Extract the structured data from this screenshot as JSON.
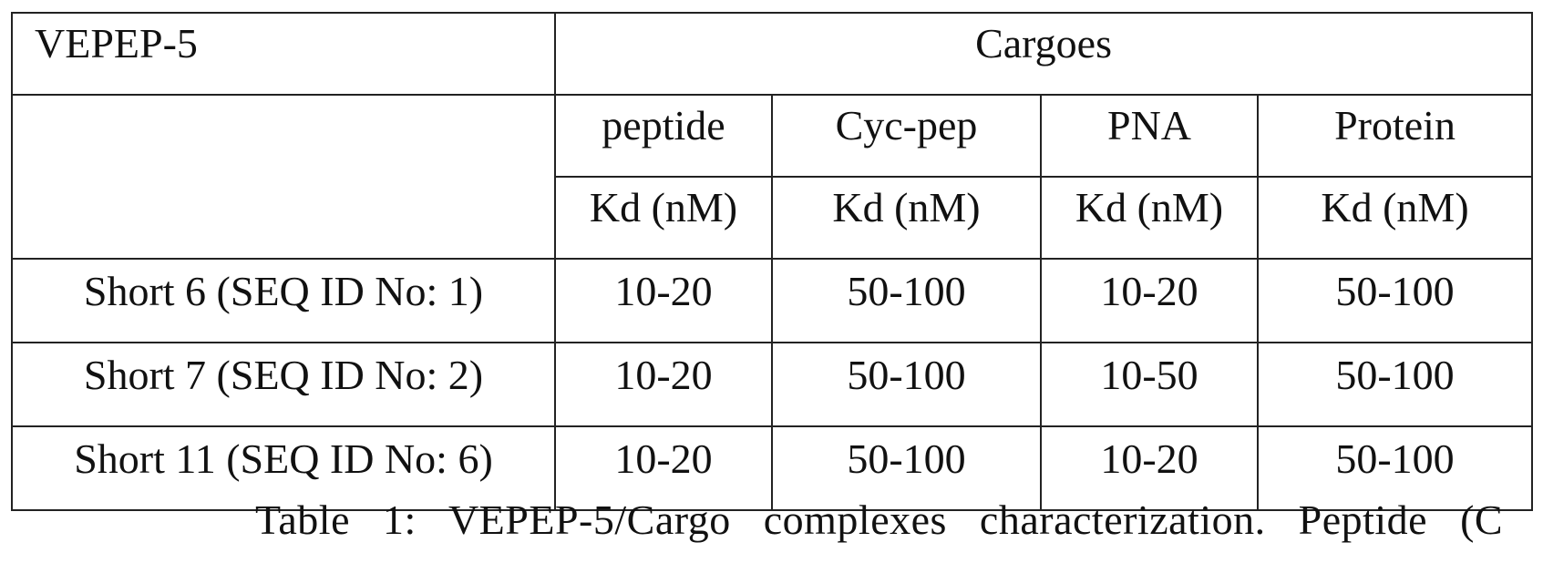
{
  "table": {
    "title": "VEPEP-5",
    "group_header": "Cargoes",
    "cargo_types": [
      "peptide",
      "Cyc-pep",
      "PNA",
      "Protein"
    ],
    "unit_label": "Kd (nM)",
    "rows": [
      {
        "label": "Short 6 (SEQ ID No: 1)",
        "values": [
          "10-20",
          "50-100",
          "10-20",
          "50-100"
        ]
      },
      {
        "label": "Short 7 (SEQ ID No: 2)",
        "values": [
          "10-20",
          "50-100",
          "10-50",
          "50-100"
        ]
      },
      {
        "label": "Short 11 (SEQ ID No: 6)",
        "values": [
          "10-20",
          "50-100",
          "10-20",
          "50-100"
        ]
      }
    ]
  },
  "caption": "Table 1: VEPEP-5/Cargo complexes characterization. Peptide (C"
}
